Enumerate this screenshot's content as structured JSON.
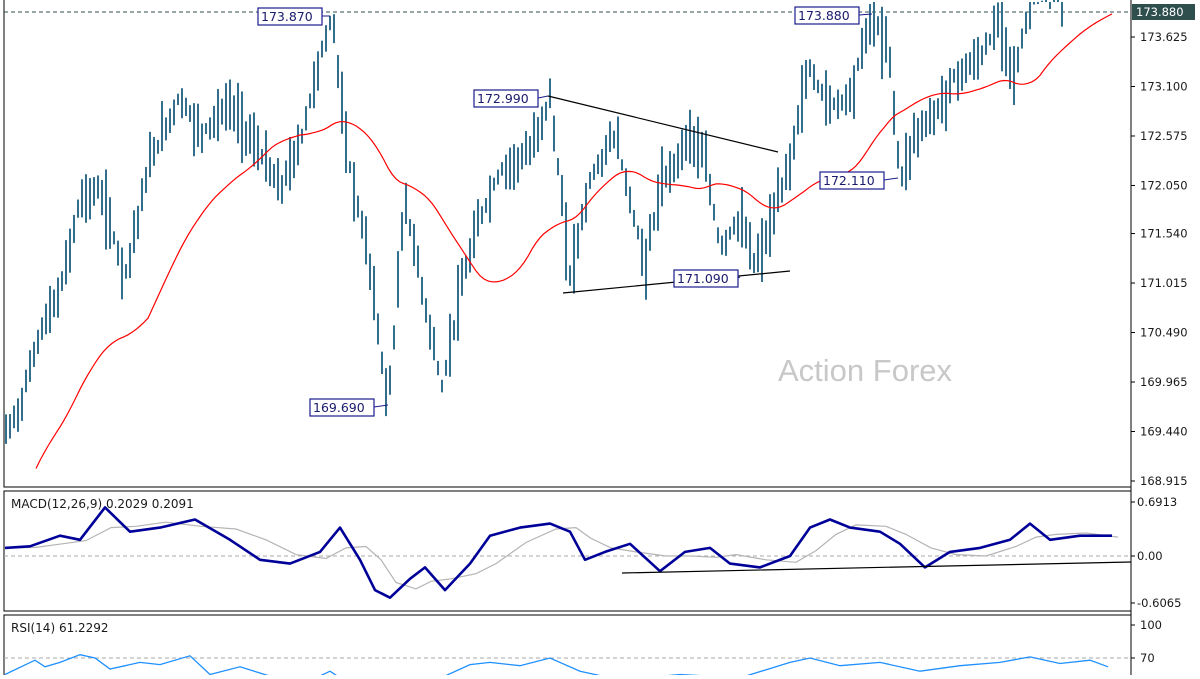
{
  "chart_data": {
    "type": "bar",
    "subtype": "ohlc-bar",
    "watermark": "Action Forex",
    "main_panel": {
      "price_axis": [
        "173.625",
        "173.100",
        "172.575",
        "172.050",
        "171.540",
        "171.015",
        "170.490",
        "169.965",
        "169.440",
        "168.915"
      ],
      "price_axis_values": [
        173.625,
        173.1,
        172.575,
        172.05,
        171.54,
        171.015,
        170.49,
        169.965,
        169.44,
        168.915
      ],
      "current_price": "173.880",
      "ylim": [
        168.915,
        173.88
      ],
      "annotations": [
        {
          "label": "173.870",
          "type": "high"
        },
        {
          "label": "169.690",
          "type": "low"
        },
        {
          "label": "172.990",
          "type": "high"
        },
        {
          "label": "171.090",
          "type": "low"
        },
        {
          "label": "173.880",
          "type": "high"
        },
        {
          "label": "172.110",
          "type": "low"
        }
      ],
      "moving_average": {
        "color": "#ff0000",
        "description": "red moving average line"
      },
      "trendlines": [
        "descending line from 172.990",
        "ascending support line through 171.090"
      ],
      "bar_color": "#336e8c"
    },
    "macd_panel": {
      "title": "MACD(12,26,9) 0.2029 0.2091",
      "name": "MACD(12,26,9)",
      "macd_value": 0.2029,
      "signal_value": 0.2091,
      "axis": [
        "0.6913",
        "0.00",
        "-0.6065"
      ],
      "ylim": [
        -0.6065,
        0.6913
      ],
      "macd_color": "#000099",
      "signal_color": "#b4b4b4"
    },
    "rsi_panel": {
      "title": "RSI(14) 61.2292",
      "name": "RSI(14)",
      "value": 61.2292,
      "axis": [
        "100",
        "70"
      ],
      "levels": [
        70
      ],
      "line_color": "#1e90ff"
    }
  }
}
